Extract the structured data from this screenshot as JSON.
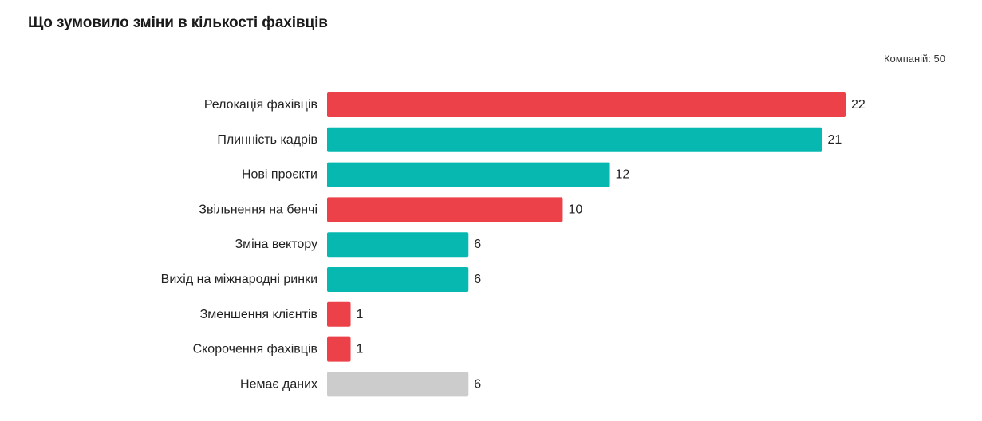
{
  "title": "Що зумовило зміни в кількості фахівців",
  "meta_label": "Компаній: 50",
  "colors": {
    "red": "#ec4149",
    "teal": "#07b8b0",
    "gray": "#cccccc"
  },
  "chart_data": {
    "type": "bar",
    "orientation": "horizontal",
    "categories": [
      "Релокація фахівців",
      "Плинність кадрів",
      "Нові проєкти",
      "Звільнення на бенчі",
      "Зміна вектору",
      "Вихід на міжнародні ринки",
      "Зменшення клієнтів",
      "Скорочення фахівців",
      "Немає даних"
    ],
    "values": [
      22,
      21,
      12,
      10,
      6,
      6,
      1,
      1,
      6
    ],
    "bar_colors": [
      "red",
      "teal",
      "teal",
      "red",
      "teal",
      "teal",
      "red",
      "red",
      "gray"
    ],
    "value_labels": [
      "22",
      "21",
      "12",
      "10",
      "6",
      "6",
      "1",
      "1",
      "6"
    ],
    "xlim": [
      0,
      22
    ],
    "grid": false,
    "legend": false
  }
}
